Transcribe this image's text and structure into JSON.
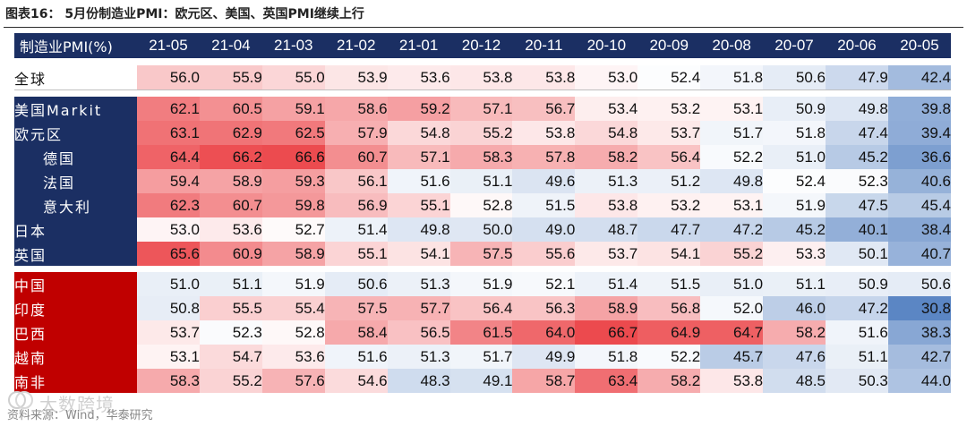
{
  "title": "图表16： 5月份制造业PMI：欧元区、美国、英国PMI继续上行",
  "source": "资料来源：Wind，华泰研究",
  "watermark": "大数跨境",
  "table": {
    "header_label": "制造业PMI(%)",
    "columns": [
      "21-05",
      "21-04",
      "21-03",
      "21-02",
      "21-01",
      "20-12",
      "20-11",
      "20-10",
      "20-09",
      "20-08",
      "20-07",
      "20-06",
      "20-05"
    ],
    "world": {
      "label": "全球",
      "values": [
        56.0,
        55.9,
        55.0,
        53.9,
        53.6,
        53.8,
        53.8,
        53.0,
        52.4,
        51.8,
        50.6,
        47.9,
        42.4
      ]
    },
    "developed": [
      {
        "label": "美国Markit",
        "indent": false,
        "values": [
          62.1,
          60.5,
          59.1,
          58.6,
          59.2,
          57.1,
          56.7,
          53.4,
          53.2,
          53.1,
          50.9,
          49.8,
          39.8
        ]
      },
      {
        "label": "欧元区",
        "indent": false,
        "values": [
          63.1,
          62.9,
          62.5,
          57.9,
          54.8,
          55.2,
          53.8,
          54.8,
          53.7,
          51.7,
          51.8,
          47.4,
          39.4
        ]
      },
      {
        "label": "德国",
        "indent": true,
        "values": [
          64.4,
          66.2,
          66.6,
          60.7,
          57.1,
          58.3,
          57.8,
          58.2,
          56.4,
          52.2,
          51.0,
          45.2,
          36.6
        ]
      },
      {
        "label": "法国",
        "indent": true,
        "values": [
          59.4,
          58.9,
          59.3,
          56.1,
          51.6,
          51.1,
          49.6,
          51.3,
          51.2,
          49.8,
          52.4,
          52.3,
          40.6
        ]
      },
      {
        "label": "意大利",
        "indent": true,
        "values": [
          62.3,
          60.7,
          59.8,
          56.9,
          55.1,
          52.8,
          51.5,
          53.8,
          53.2,
          53.1,
          51.9,
          47.5,
          45.4
        ]
      },
      {
        "label": "日本",
        "indent": false,
        "values": [
          53.0,
          53.6,
          52.7,
          51.4,
          49.8,
          50.0,
          49.0,
          48.7,
          47.7,
          47.2,
          45.2,
          40.1,
          38.4
        ]
      },
      {
        "label": "英国",
        "indent": false,
        "values": [
          65.6,
          60.9,
          58.9,
          55.1,
          54.1,
          57.5,
          55.6,
          53.7,
          54.1,
          55.2,
          53.3,
          50.1,
          40.7
        ]
      }
    ],
    "emerging": [
      {
        "label": "中国",
        "indent": false,
        "values": [
          51.0,
          51.1,
          51.9,
          50.6,
          51.3,
          51.9,
          52.1,
          51.4,
          51.5,
          51.0,
          51.1,
          50.9,
          50.6
        ]
      },
      {
        "label": "印度",
        "indent": false,
        "values": [
          50.8,
          55.5,
          55.4,
          57.5,
          57.7,
          56.4,
          56.3,
          58.9,
          56.8,
          52.0,
          46.0,
          47.2,
          30.8
        ]
      },
      {
        "label": "巴西",
        "indent": false,
        "values": [
          53.7,
          52.3,
          52.8,
          58.4,
          56.5,
          61.5,
          64.0,
          66.7,
          64.9,
          64.7,
          58.2,
          51.6,
          38.3
        ]
      },
      {
        "label": "越南",
        "indent": false,
        "values": [
          53.1,
          54.7,
          53.6,
          51.6,
          51.3,
          51.7,
          49.9,
          51.8,
          52.2,
          45.7,
          47.6,
          51.1,
          42.7
        ]
      },
      {
        "label": "南非",
        "indent": false,
        "values": [
          58.3,
          55.2,
          57.6,
          54.6,
          48.3,
          49.1,
          58.7,
          63.4,
          58.2,
          53.8,
          48.5,
          50.3,
          44.0
        ]
      }
    ]
  },
  "colors": {
    "header_bg": "#1b2f63",
    "developed_label_bg": "#1b2f63",
    "emerging_label_bg": "#c00000",
    "heat_low": "#5b86c4",
    "heat_mid": "#ffffff",
    "heat_high": "#ec4a4e"
  }
}
